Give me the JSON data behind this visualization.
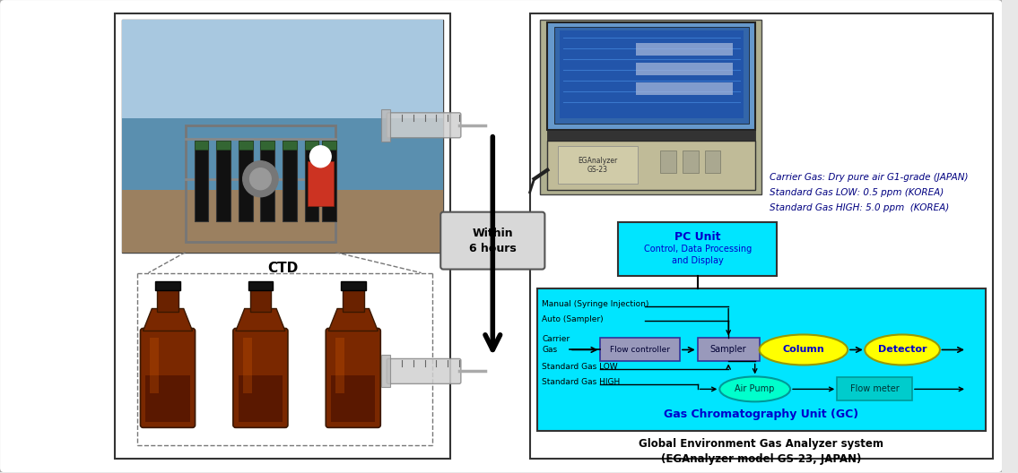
{
  "bg_color": "#e8e8e8",
  "title_text": "Global Environment Gas Analyzer system\n(EGAnalyzer model GS-23, JAPAN)",
  "ctd_label": "CTD",
  "within_label": "Within\n6 hours",
  "pc_unit_label": "PC Unit",
  "pc_unit_sublabel": "Control, Data Processing\nand Display",
  "gc_unit_label": "Gas Chromatography Unit (GC)",
  "gc_bg": "#00e5ff",
  "pc_box_bg": "#00e5ff",
  "flow_controller_label": "Flow controller",
  "sampler_label": "Sampler",
  "column_label": "Column",
  "detector_label": "Detector",
  "air_pump_label": "Air Pump",
  "flow_meter_label": "Flow meter",
  "manual_label": "Manual (Syringe Injection)",
  "auto_label": "Auto (Sampler)",
  "carrier_gas_label": "Carrier\nGas",
  "std_low_label": "Standard Gas LOW",
  "std_high_label": "Standard Gas HIGH",
  "carrier_gas_info": "Carrier Gas: Dry pure air G1-grade (JAPAN)",
  "std_low_info": "Standard Gas LOW: 0.5 ppm (KOREA)",
  "std_high_info": "Standard Gas HIGH: 5.0 ppm  (KOREA)",
  "flow_controller_color": "#9999bb",
  "sampler_color": "#9999bb",
  "column_color": "#ffff00",
  "detector_color": "#ffff00",
  "air_pump_color": "#00ffcc",
  "flow_meter_color": "#00cccc",
  "text_blue": "#0000cc",
  "text_darkblue": "#000080"
}
